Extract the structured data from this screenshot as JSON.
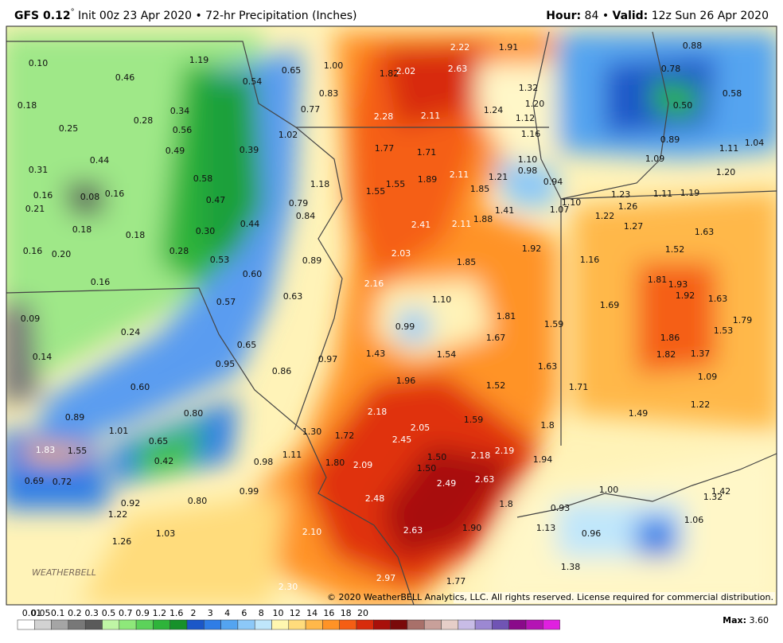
{
  "header": {
    "model": "GFS 0.12",
    "degree": "°",
    "init": " Init 00z 23 Apr 2020 • 72-hr Precipitation (Inches)",
    "hour_label": "Hour:",
    "hour": " 84 • ",
    "valid_label": "Valid:",
    "valid": " 12z Sun 26 Apr 2020"
  },
  "map": {
    "labels": [
      "0.10",
      "1.19",
      "0.46",
      "0.54",
      "0.65",
      "1.00",
      "2.22",
      "1.91",
      "0.88",
      "1.82",
      "2.02",
      "2.63",
      "0.78",
      "1.32",
      "0.83",
      "0.58",
      "0.18",
      "0.34",
      "0.28",
      "0.56",
      "0.77",
      "2.28",
      "2.11",
      "1.24",
      "1.20",
      "0.50",
      "1.12",
      "0.25",
      "1.02",
      "1.16",
      "0.89",
      "1.11",
      "1.04",
      "0.49",
      "0.39",
      "1.77",
      "1.71",
      "1.09",
      "0.44",
      "1.10",
      "0.31",
      "0.58",
      "1.89",
      "2.11",
      "1.21",
      "0.98",
      "1.20",
      "1.18",
      "1.55",
      "1.55",
      "1.85",
      "0.94",
      "0.16",
      "0.08",
      "0.16",
      "0.47",
      "0.79",
      "1.10",
      "1.23",
      "1.11",
      "1.19",
      "0.21",
      "0.84",
      "1.41",
      "1.07",
      "1.26",
      "1.22",
      "1.88",
      "2.41",
      "2.11",
      "0.18",
      "0.18",
      "0.30",
      "0.44",
      "1.27",
      "1.63",
      "0.16",
      "0.20",
      "0.28",
      "0.53",
      "0.89",
      "2.03",
      "1.85",
      "1.92",
      "1.16",
      "1.52",
      "0.60",
      "0.16",
      "2.16",
      "1.81",
      "1.93",
      "1.92",
      "1.63",
      "0.57",
      "0.63",
      "1.10",
      "1.69",
      "0.09",
      "1.81",
      "1.59",
      "1.79",
      "1.53",
      "0.24",
      "0.99",
      "1.67",
      "1.86",
      "0.65",
      "1.43",
      "1.54",
      "1.82",
      "1.37",
      "0.14",
      "0.97",
      "1.63",
      "0.95",
      "0.86",
      "1.09",
      "1.96",
      "1.52",
      "1.71",
      "0.60",
      "1.22",
      "2.18",
      "1.49",
      "0.80",
      "0.89",
      "1.59",
      "1.8",
      "1.01",
      "2.05",
      "1.30",
      "1.72",
      "0.65",
      "2.45",
      "1.83",
      "1.55",
      "1.11",
      "2.19",
      "2.18",
      "1.50",
      "1.94",
      "0.42",
      "0.98",
      "1.80",
      "2.09",
      "1.50",
      "0.69",
      "0.72",
      "2.49",
      "2.63",
      "1.00",
      "1.42",
      "1.32",
      "0.99",
      "2.48",
      "0.92",
      "0.80",
      "1.8",
      "0.93",
      "1.22",
      "1.06",
      "1.13",
      "1.90",
      "2.63",
      "2.10",
      "0.96",
      "1.03",
      "1.26",
      "1.38",
      "2.97",
      "1.77",
      "2.30"
    ],
    "logo": "WEATHERBELL",
    "copyright": "© 2020 WeatherBELL Analytics, LLC. All rights reserved. License required for commercial distribution."
  },
  "legend": {
    "items": [
      {
        "label": "0.01",
        "color": "#ffffff"
      },
      {
        "label": "0.05",
        "color": "#d2d2d2"
      },
      {
        "label": "0.1",
        "color": "#a5a5a5"
      },
      {
        "label": "0.2",
        "color": "#787878"
      },
      {
        "label": "0.3",
        "color": "#5a5a5a"
      },
      {
        "label": "0.5",
        "color": "#bff5a5"
      },
      {
        "label": "0.7",
        "color": "#8ee87a"
      },
      {
        "label": "0.9",
        "color": "#5cd25a"
      },
      {
        "label": "1.2",
        "color": "#2eb43a"
      },
      {
        "label": "1.6",
        "color": "#17912a"
      },
      {
        "label": "2",
        "color": "#1b57c8"
      },
      {
        "label": "3",
        "color": "#2f7de6"
      },
      {
        "label": "4",
        "color": "#54a4f0"
      },
      {
        "label": "6",
        "color": "#8cc8f8"
      },
      {
        "label": "8",
        "color": "#bfe6fb"
      },
      {
        "label": "10",
        "color": "#fff7b0"
      },
      {
        "label": "12",
        "color": "#ffdc7c"
      },
      {
        "label": "14",
        "color": "#ffb84a"
      },
      {
        "label": "16",
        "color": "#ff9326"
      },
      {
        "label": "18",
        "color": "#f55e14"
      },
      {
        "label": "20",
        "color": "#d82c0c"
      },
      {
        "color": "#a8100a"
      },
      {
        "color": "#7a0a0a"
      },
      {
        "color": "#a8706a"
      },
      {
        "color": "#c8a09a"
      },
      {
        "color": "#e6cec8"
      },
      {
        "color": "#c8bce6"
      },
      {
        "color": "#9c88d2"
      },
      {
        "color": "#7054b4"
      },
      {
        "color": "#8a0a8a"
      },
      {
        "color": "#b414b4"
      },
      {
        "color": "#e020e0"
      }
    ],
    "max_label": "Max:",
    "max": " 3.60"
  }
}
